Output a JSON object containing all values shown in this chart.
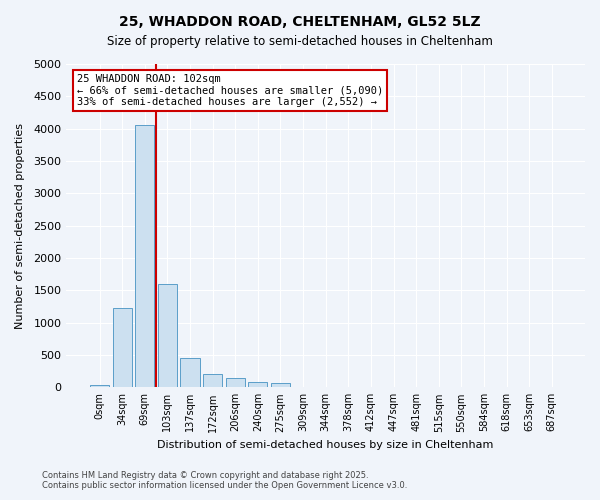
{
  "title1": "25, WHADDON ROAD, CHELTENHAM, GL52 5LZ",
  "title2": "Size of property relative to semi-detached houses in Cheltenham",
  "xlabel": "Distribution of semi-detached houses by size in Cheltenham",
  "ylabel": "Number of semi-detached properties",
  "categories": [
    "0sqm",
    "34sqm",
    "69sqm",
    "103sqm",
    "137sqm",
    "172sqm",
    "206sqm",
    "240sqm",
    "275sqm",
    "309sqm",
    "344sqm",
    "378sqm",
    "412sqm",
    "447sqm",
    "481sqm",
    "515sqm",
    "550sqm",
    "584sqm",
    "618sqm",
    "653sqm",
    "687sqm"
  ],
  "values": [
    30,
    1230,
    4050,
    1600,
    460,
    210,
    140,
    80,
    60,
    0,
    0,
    0,
    0,
    0,
    0,
    0,
    0,
    0,
    0,
    0,
    0
  ],
  "bar_color": "#cce0f0",
  "bar_edge_color": "#5a9ec9",
  "vline_x": 3,
  "vline_color": "#cc0000",
  "ylim": [
    0,
    5000
  ],
  "yticks": [
    0,
    500,
    1000,
    1500,
    2000,
    2500,
    3000,
    3500,
    4000,
    4500,
    5000
  ],
  "annotation_title": "25 WHADDON ROAD: 102sqm",
  "annotation_line1": "← 66% of semi-detached houses are smaller (5,090)",
  "annotation_line2": "33% of semi-detached houses are larger (2,552) →",
  "annotation_box_color": "#ffffff",
  "annotation_box_edge": "#cc0000",
  "footer1": "Contains HM Land Registry data © Crown copyright and database right 2025.",
  "footer2": "Contains public sector information licensed under the Open Government Licence v3.0.",
  "bg_color": "#f0f4fa",
  "grid_color": "#ffffff"
}
